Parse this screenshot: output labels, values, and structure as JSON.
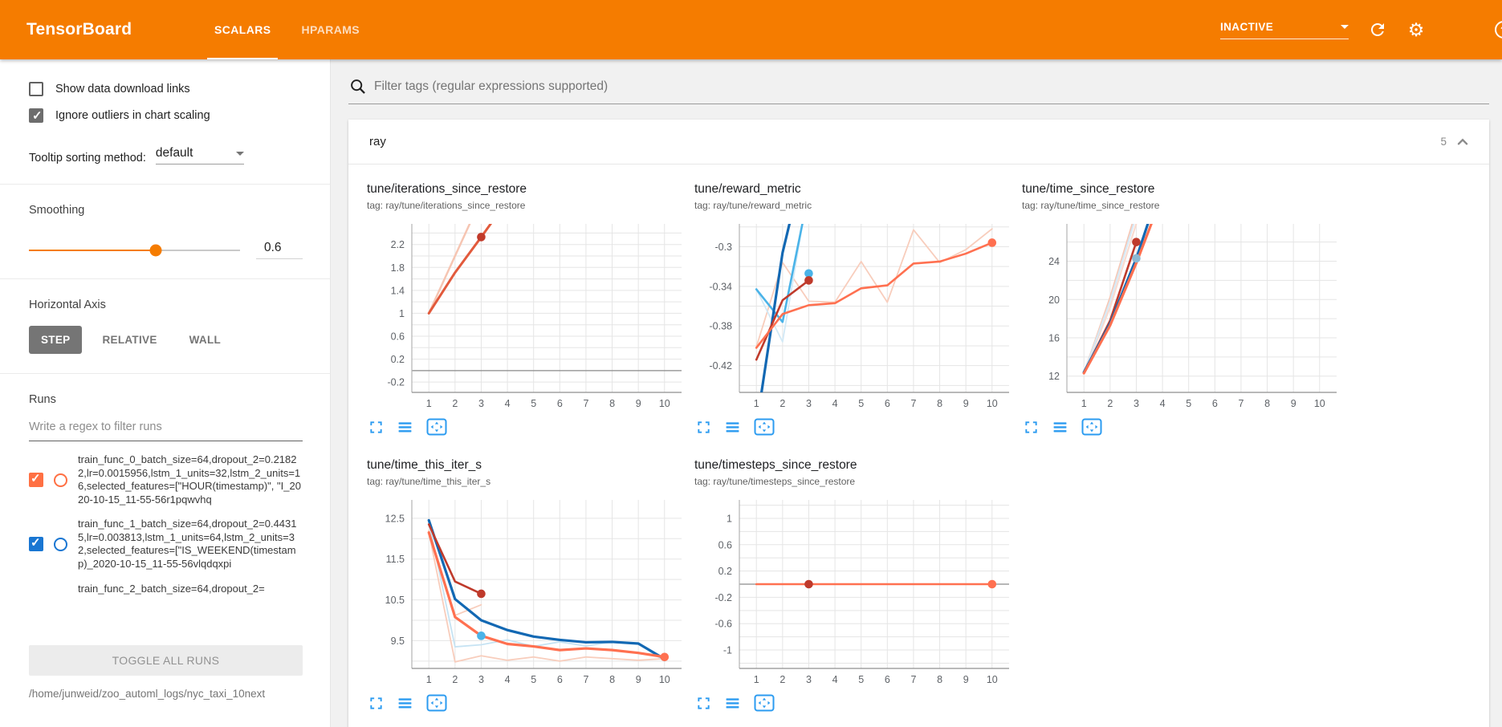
{
  "header": {
    "title": "TensorBoard",
    "tabs": [
      {
        "label": "SCALARS",
        "active": true
      },
      {
        "label": "HPARAMS",
        "active": false
      }
    ],
    "status": "INACTIVE",
    "accent_color": "#f57c00",
    "icons": [
      "chevron-down-icon",
      "refresh-icon",
      "settings-icon",
      "help-icon"
    ]
  },
  "sidebar": {
    "checkboxes": [
      {
        "label": "Show data download links",
        "checked": false
      },
      {
        "label": "Ignore outliers in chart scaling",
        "checked": true
      }
    ],
    "tooltip_sorting": {
      "label": "Tooltip sorting method:",
      "value": "default"
    },
    "smoothing": {
      "label": "Smoothing",
      "value": "0.6",
      "fraction": 0.6
    },
    "horizontal_axis": {
      "label": "Horizontal Axis",
      "options": [
        "STEP",
        "RELATIVE",
        "WALL"
      ],
      "selected": "STEP"
    },
    "runs": {
      "label": "Runs",
      "filter_placeholder": "Write a regex to filter runs",
      "items": [
        {
          "text": "train_func_0_batch_size=64,dropout_2=0.21822,lr=0.0015956,lstm_1_units=32,lstm_2_units=16,selected_features=[\"HOUR(timestamp)\", \"I_2020-10-15_11-55-56r1pqwvhq",
          "checked": true,
          "color": "#ff7043",
          "partial": false
        },
        {
          "text": "train_func_1_batch_size=64,dropout_2=0.44315,lr=0.003813,lstm_1_units=64,lstm_2_units=32,selected_features=[\"IS_WEEKEND(timestamp)_2020-10-15_11-55-56vlqdqxpi",
          "checked": true,
          "color": "#1976d2",
          "partial": false
        },
        {
          "text": "train_func_2_batch_size=64,dropout_2=",
          "checked": true,
          "color": "#9e9e9e",
          "partial": true
        }
      ],
      "toggle_all_label": "TOGGLE ALL RUNS",
      "logdir": "/home/junweid/zoo_automl_logs/nyc_taxi_10next"
    }
  },
  "main": {
    "filter_placeholder": "Filter tags (regular expressions supported)",
    "section": {
      "name": "ray",
      "count": "5"
    },
    "chart_toolbar_icons": [
      "fullscreen-icon",
      "runs-selector-icon",
      "pan-zoom-icon"
    ]
  },
  "chart_data": [
    {
      "type": "line",
      "title": "tune/iterations_since_restore",
      "tag": "tag: ray/tune/iterations_since_restore",
      "xlim": [
        0.35,
        10.65
      ],
      "ylim": [
        -0.38,
        2.56
      ],
      "ygrid": 0.2,
      "zero_line": true,
      "yticks": {
        "v": [
          2.2,
          1.8,
          1.4,
          1,
          0.6,
          0.2,
          -0.2
        ],
        "l": [
          "2.2",
          "1.8",
          "1.4",
          "1",
          "0.6",
          "0.2",
          "-0.2"
        ]
      },
      "xticks": [
        1,
        2,
        3,
        4,
        5,
        6,
        7,
        8,
        9,
        10
      ],
      "series": [
        {
          "name": "train_func_0 (raw)",
          "color": "#f6c5b2",
          "w": 2.5,
          "pts": [
            [
              1,
              1
            ],
            [
              2,
              2
            ],
            [
              3,
              3
            ]
          ]
        },
        {
          "name": "train_func_0 (smoothed)",
          "color": "#e25a3c",
          "w": 3,
          "pts": [
            [
              1,
              1
            ],
            [
              2,
              1.71
            ],
            [
              3,
              2.33
            ],
            [
              4,
              2.97
            ]
          ]
        }
      ],
      "dots": [
        {
          "x": 3,
          "y": 2.33,
          "c": "#c13a2a"
        }
      ]
    },
    {
      "type": "line",
      "title": "tune/reward_metric",
      "tag": "tag: ray/tune/reward_metric",
      "xlim": [
        0.35,
        10.65
      ],
      "ylim": [
        -0.447,
        -0.277
      ],
      "ygrid": 0.02,
      "zero_line": false,
      "yticks": {
        "v": [
          -0.3,
          -0.34,
          -0.38,
          -0.42
        ],
        "l": [
          "-0.3",
          "-0.34",
          "-0.38",
          "-0.42"
        ]
      },
      "xticks": [
        1,
        2,
        3,
        4,
        5,
        6,
        7,
        8,
        9,
        10
      ],
      "series": [
        {
          "name": "run_orange (raw)",
          "color": "#f8cdbc",
          "w": 1.8,
          "pts": [
            [
              1,
              -0.401
            ],
            [
              2,
              -0.316
            ],
            [
              3,
              -0.355
            ],
            [
              4,
              -0.356
            ],
            [
              5,
              -0.315
            ],
            [
              6,
              -0.356
            ],
            [
              7,
              -0.283
            ],
            [
              8,
              -0.316
            ],
            [
              9,
              -0.303
            ],
            [
              10,
              -0.282
            ]
          ]
        },
        {
          "name": "run_blue (raw)",
          "color": "#d2e9f6",
          "w": 1.8,
          "pts": [
            [
              1,
              -0.343
            ],
            [
              2,
              -0.396
            ],
            [
              3,
              -0.24
            ]
          ]
        },
        {
          "name": "run_lightblue",
          "color": "#4ab3e8",
          "w": 2.6,
          "pts": [
            [
              1,
              -0.343
            ],
            [
              2,
              -0.376
            ],
            [
              3,
              -0.245
            ]
          ]
        },
        {
          "name": "run_darkblue",
          "color": "#1268b3",
          "w": 3.2,
          "pts": [
            [
              1.15,
              -0.455
            ],
            [
              2,
              -0.306
            ],
            [
              2.6,
              -0.24
            ]
          ]
        },
        {
          "name": "run_darkred",
          "color": "#bf3a2b",
          "w": 2.6,
          "pts": [
            [
              1,
              -0.414
            ],
            [
              2,
              -0.354
            ],
            [
              3,
              -0.334
            ]
          ]
        },
        {
          "name": "run_orange (smoothed)",
          "color": "#ff7050",
          "w": 2.6,
          "pts": [
            [
              1,
              -0.402
            ],
            [
              2,
              -0.368
            ],
            [
              3,
              -0.359
            ],
            [
              4,
              -0.357
            ],
            [
              5,
              -0.342
            ],
            [
              6,
              -0.339
            ],
            [
              7,
              -0.317
            ],
            [
              8,
              -0.315
            ],
            [
              9,
              -0.307
            ],
            [
              10,
              -0.296
            ]
          ]
        }
      ],
      "dots": [
        {
          "x": 3,
          "y": -0.327,
          "c": "#4ab3e8"
        },
        {
          "x": 3,
          "y": -0.334,
          "c": "#bf3a2b"
        },
        {
          "x": 10,
          "y": -0.296,
          "c": "#ff7050"
        }
      ]
    },
    {
      "type": "line",
      "title": "tune/time_since_restore",
      "tag": "tag: ray/tune/time_since_restore",
      "xlim": [
        0.35,
        10.65
      ],
      "ylim": [
        10.3,
        27.9
      ],
      "ygrid": 2,
      "zero_line": false,
      "yticks": {
        "v": [
          24,
          20,
          16,
          12
        ],
        "l": [
          "24",
          "20",
          "16",
          "12"
        ]
      },
      "xticks": [
        1,
        2,
        3,
        4,
        5,
        6,
        7,
        8,
        9,
        10
      ],
      "series": [
        {
          "name": "raw_pink",
          "color": "#f6c5b2",
          "w": 2.2,
          "pts": [
            [
              1,
              12.3
            ],
            [
              2,
              20.2
            ],
            [
              2.95,
              28.8
            ]
          ]
        },
        {
          "name": "raw_pink_2",
          "color": "#f9dbd0",
          "w": 2.2,
          "pts": [
            [
              1,
              12.3
            ],
            [
              2,
              19.2
            ],
            [
              3.1,
              28.8
            ]
          ]
        },
        {
          "name": "raw_lightblue",
          "color": "#d6e9f5",
          "w": 2.2,
          "pts": [
            [
              1,
              12.3
            ],
            [
              2,
              19.8
            ],
            [
              3,
              28.8
            ]
          ]
        },
        {
          "name": "run_darkred",
          "color": "#bf3a2b",
          "w": 2.6,
          "pts": [
            [
              1,
              12.35
            ],
            [
              2,
              17.8
            ],
            [
              3,
              26
            ]
          ]
        },
        {
          "name": "run_darkblue",
          "color": "#1268b3",
          "w": 3.2,
          "pts": [
            [
              1,
              12.4
            ],
            [
              2,
              17.5
            ],
            [
              3,
              24.3
            ],
            [
              3.55,
              28.8
            ]
          ]
        },
        {
          "name": "run_orange",
          "color": "#ff7050",
          "w": 3.2,
          "pts": [
            [
              1,
              12.3
            ],
            [
              2,
              17.3
            ],
            [
              3,
              23.8
            ],
            [
              3.7,
              28.8
            ]
          ]
        }
      ],
      "dots": [
        {
          "x": 3,
          "y": 26,
          "c": "#bf3a2b"
        },
        {
          "x": 3,
          "y": 24.3,
          "c": "#8cb8d2"
        }
      ]
    },
    {
      "type": "line",
      "title": "tune/time_this_iter_s",
      "tag": "tag: ray/tune/time_this_iter_s",
      "xlim": [
        0.35,
        10.65
      ],
      "ylim": [
        8.82,
        12.95
      ],
      "ygrid": 0.5,
      "zero_line": false,
      "yticks": {
        "v": [
          12.5,
          11.5,
          10.5,
          9.5
        ],
        "l": [
          "12.5",
          "11.5",
          "10.5",
          "9.5"
        ]
      },
      "xticks": [
        1,
        2,
        3,
        4,
        5,
        6,
        7,
        8,
        9,
        10
      ],
      "series": [
        {
          "name": "raw_pink_spike",
          "color": "#f8cdbc",
          "w": 1.8,
          "pts": [
            [
              1,
              12.2
            ],
            [
              2,
              10.12
            ],
            [
              3,
              10.38
            ]
          ]
        },
        {
          "name": "raw_pink_low",
          "color": "#f8cdbc",
          "w": 1.8,
          "pts": [
            [
              1,
              12.15
            ],
            [
              2,
              8.98
            ],
            [
              3,
              9.13
            ],
            [
              4,
              9.02
            ],
            [
              5,
              9.1
            ],
            [
              6,
              9
            ],
            [
              7,
              9.1
            ],
            [
              8,
              9.06
            ],
            [
              9,
              9.02
            ],
            [
              10,
              9.06
            ]
          ]
        },
        {
          "name": "raw_lightblue",
          "color": "#c6e3f3",
          "w": 1.8,
          "pts": [
            [
              1,
              12.4
            ],
            [
              2,
              9.35
            ],
            [
              3,
              9.4
            ],
            [
              4,
              9.52
            ],
            [
              5,
              9.36
            ],
            [
              6,
              9.47
            ],
            [
              7,
              9.37
            ],
            [
              8,
              9.47
            ],
            [
              9,
              9.43
            ],
            [
              10,
              9
            ]
          ]
        },
        {
          "name": "run_darkblue",
          "color": "#1268b3",
          "w": 3.2,
          "pts": [
            [
              1,
              12.45
            ],
            [
              2,
              10.52
            ],
            [
              3,
              10
            ],
            [
              4,
              9.76
            ],
            [
              5,
              9.6
            ],
            [
              6,
              9.52
            ],
            [
              7,
              9.46
            ],
            [
              8,
              9.47
            ],
            [
              9,
              9.43
            ],
            [
              10,
              9.05
            ]
          ]
        },
        {
          "name": "run_orange",
          "color": "#ff7050",
          "w": 3.2,
          "pts": [
            [
              1,
              12.15
            ],
            [
              2,
              10.08
            ],
            [
              3,
              9.62
            ],
            [
              4,
              9.42
            ],
            [
              5,
              9.36
            ],
            [
              6,
              9.27
            ],
            [
              7,
              9.31
            ],
            [
              8,
              9.27
            ],
            [
              9,
              9.2
            ],
            [
              10,
              9.1
            ]
          ]
        },
        {
          "name": "run_darkred",
          "color": "#bf3a2b",
          "w": 2.6,
          "pts": [
            [
              1,
              12.35
            ],
            [
              2,
              10.95
            ],
            [
              3,
              10.65
            ]
          ]
        }
      ],
      "dots": [
        {
          "x": 3,
          "y": 10.65,
          "c": "#bf3a2b"
        },
        {
          "x": 3,
          "y": 9.62,
          "c": "#4ab3e8"
        },
        {
          "x": 10,
          "y": 9.1,
          "c": "#ff7050"
        }
      ]
    },
    {
      "type": "line",
      "title": "tune/timesteps_since_restore",
      "tag": "tag: ray/tune/timesteps_since_restore",
      "xlim": [
        0.35,
        10.65
      ],
      "ylim": [
        -1.28,
        1.28
      ],
      "ygrid": 0.2,
      "zero_line": true,
      "yticks": {
        "v": [
          1,
          0.6,
          0.2,
          -0.2,
          -0.6,
          -1
        ],
        "l": [
          "1",
          "0.6",
          "0.2",
          "-0.2",
          "-0.6",
          "-1"
        ]
      },
      "xticks": [
        1,
        2,
        3,
        4,
        5,
        6,
        7,
        8,
        9,
        10
      ],
      "series": [
        {
          "name": "run_orange",
          "color": "#ff7050",
          "w": 2.6,
          "pts": [
            [
              1,
              0
            ],
            [
              10,
              0
            ]
          ]
        }
      ],
      "dots": [
        {
          "x": 3,
          "y": 0,
          "c": "#bf3a2b"
        },
        {
          "x": 10,
          "y": 0,
          "c": "#ff7050"
        }
      ]
    }
  ]
}
